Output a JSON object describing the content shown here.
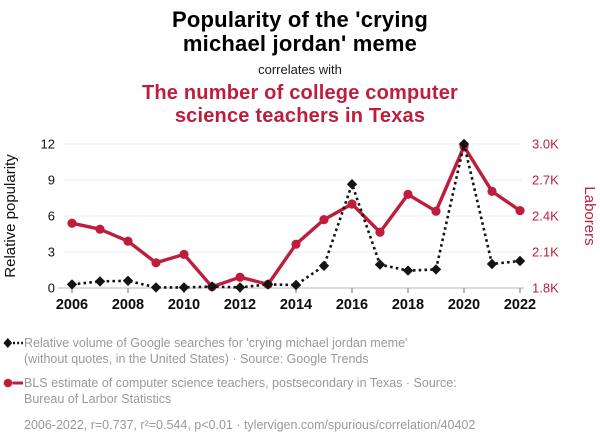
{
  "header": {
    "title_line1": "Popularity of the 'crying",
    "title_line2": "michael jordan' meme",
    "connector": "correlates with",
    "subtitle_line1": "The number of college computer",
    "subtitle_line2": "science teachers in Texas"
  },
  "colors": {
    "accent_red": "#be1e3c",
    "series_black": "#141414",
    "legend_gray": "#999999",
    "grid_gray": "#ececec",
    "axis_gray": "#c8c8c8"
  },
  "chart_data": {
    "type": "line",
    "x": [
      2006,
      2007,
      2008,
      2009,
      2010,
      2011,
      2012,
      2013,
      2014,
      2015,
      2016,
      2017,
      2018,
      2019,
      2020,
      2021,
      2022
    ],
    "x_tick_labels": [
      "2006",
      "2008",
      "2010",
      "2012",
      "2014",
      "2016",
      "2018",
      "2020",
      "2022"
    ],
    "left_axis": {
      "label": "Relative popularity",
      "ticks": [
        0,
        3,
        6,
        9,
        12
      ],
      "range": [
        0,
        12
      ]
    },
    "right_axis": {
      "label": "Laborers",
      "ticks": [
        "1.8K",
        "2.1K",
        "2.4K",
        "2.7K",
        "3.0K"
      ],
      "tick_values": [
        1800,
        2100,
        2400,
        2700,
        3000
      ],
      "range": [
        1800,
        3000
      ]
    },
    "grid": true,
    "legend_position": "bottom",
    "series": [
      {
        "name": "Relative volume of Google searches for 'crying michael jordan meme'",
        "axis": "left",
        "color": "#141414",
        "style": "dashed-diamond",
        "values": [
          0.3,
          0.55,
          0.6,
          0.05,
          0.05,
          0.12,
          0.05,
          0.3,
          0.25,
          1.85,
          8.65,
          1.95,
          1.45,
          1.55,
          12,
          2.0,
          2.25
        ]
      },
      {
        "name": "BLS estimate of computer science teachers, postsecondary in Texas",
        "axis": "right",
        "color": "#be1e3c",
        "style": "solid-circle",
        "values": [
          2340,
          2290,
          2190,
          2010,
          2080,
          1810,
          1890,
          1830,
          2165,
          2370,
          2500,
          2265,
          2580,
          2440,
          2980,
          2605,
          2445
        ]
      }
    ]
  },
  "legend": {
    "items": [
      {
        "marker": "black-diamond-dashed",
        "text_line1": "Relative volume of Google searches for 'crying michael jordan meme'",
        "text_line2": "(without quotes, in the United States) · Source: Google Trends"
      },
      {
        "marker": "red-circle-solid",
        "text_line1": "BLS estimate of computer science teachers, postsecondary in Texas · Source:",
        "text_line2": "Bureau of Larbor Statistics"
      }
    ],
    "footer": "2006-2022, r=0.737, r²=0.544, p<0.01 · tylervigen.com/spurious/correlation/40402"
  }
}
